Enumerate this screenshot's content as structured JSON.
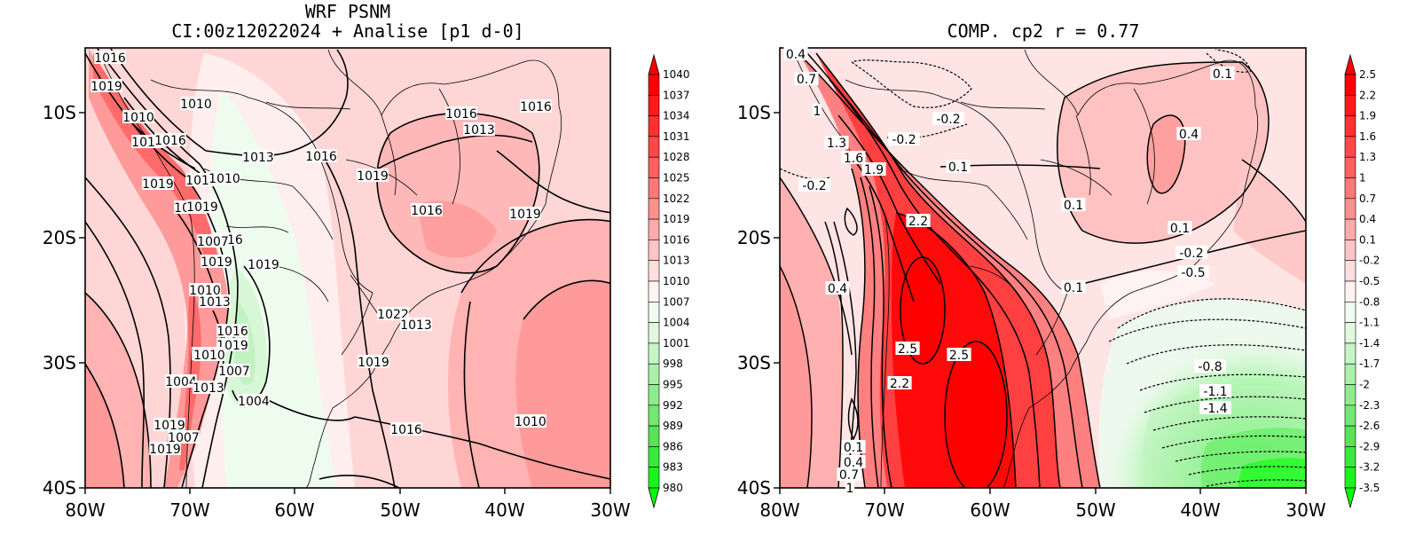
{
  "left_panel": {
    "title_line1": "WRF PSNM",
    "title_line2": "CI:00z12022024 + Analise  [p1 d-0]",
    "lon_ticks": [
      "80W",
      "70W",
      "60W",
      "50W",
      "40W",
      "30W"
    ],
    "lat_ticks": [
      "10S",
      "20S",
      "30S",
      "40S"
    ],
    "colorbar_labels": [
      "1040",
      "1037",
      "1034",
      "1031",
      "1028",
      "1025",
      "1022",
      "1019",
      "1016",
      "1013",
      "1010",
      "1007",
      "1004",
      "1001",
      "998",
      "995",
      "992",
      "989",
      "986",
      "983",
      "980"
    ],
    "contour_labels": [
      "1016",
      "1019",
      "1010",
      "1010",
      "1016",
      "1016",
      "1019",
      "1010",
      "1010",
      "1016",
      "1019",
      "1016",
      "1019",
      "1013",
      "1016",
      "1019",
      "1016",
      "1007",
      "1019",
      "1010",
      "1013",
      "1016",
      "1019",
      "1013",
      "1010",
      "1007",
      "1004",
      "1013",
      "1004",
      "1007",
      "1019",
      "1019",
      "1016",
      "1016",
      "1013",
      "1022",
      "1013",
      "1019",
      "1010",
      "1016",
      "1019"
    ]
  },
  "right_panel": {
    "title": "COMP. cp2  r =  0.77",
    "lon_ticks": [
      "80W",
      "70W",
      "60W",
      "50W",
      "40W",
      "30W"
    ],
    "lat_ticks": [
      "10S",
      "20S",
      "30S",
      "40S"
    ],
    "colorbar_labels": [
      "2.5",
      "2.2",
      "1.9",
      "1.6",
      "1.3",
      "1",
      "0.7",
      "0.4",
      "0.1",
      "-0.2",
      "-0.5",
      "-0.8",
      "-1.1",
      "-1.4",
      "-1.7",
      "-2",
      "-2.3",
      "-2.6",
      "-2.9",
      "-3.2",
      "-3.5"
    ],
    "contour_labels": [
      "0.4",
      "0.7",
      "1",
      "1.3",
      "1.6",
      "1.9",
      "-0.2",
      "-0.2",
      "-0.2",
      "0.1",
      "2.2",
      "0.1",
      "0.4",
      "0.1",
      "0.1",
      "0.4",
      "-0.2",
      "-0.5",
      "0.1",
      "2.5",
      "2.5",
      "2.2",
      "-0.8",
      "-1.1",
      "-1.4",
      "0.1",
      "0.4",
      "0.7",
      "1"
    ]
  },
  "colors": {
    "red_strong": "#ff0000",
    "red_light": "#ffe4e4",
    "green_strong": "#00ff00",
    "green_light": "#edfbed"
  }
}
